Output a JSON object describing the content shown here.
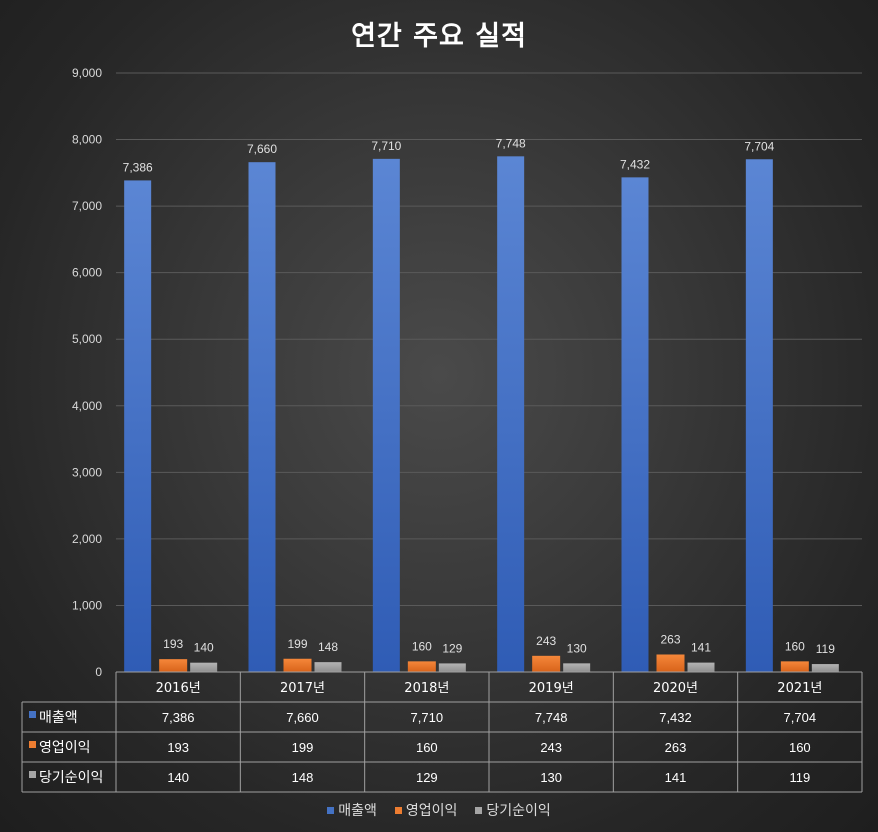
{
  "chart_data": {
    "type": "bar",
    "title": "연간 주요 실적",
    "categories": [
      "2016년",
      "2017년",
      "2018년",
      "2019년",
      "2020년",
      "2021년"
    ],
    "series": [
      {
        "name": "매출액",
        "color": "#4472c4",
        "values": [
          7386,
          7660,
          7710,
          7748,
          7432,
          7704
        ]
      },
      {
        "name": "영업이익",
        "color": "#ed7d31",
        "values": [
          193,
          199,
          160,
          243,
          263,
          160
        ]
      },
      {
        "name": "당기순이익",
        "color": "#a5a5a5",
        "values": [
          140,
          148,
          129,
          130,
          141,
          119
        ]
      }
    ],
    "ylim": [
      0,
      9000
    ],
    "yticks": [
      "0",
      "1,000",
      "2,000",
      "3,000",
      "4,000",
      "5,000",
      "6,000",
      "7,000",
      "8,000",
      "9,000"
    ],
    "value_labels": [
      [
        "7,386",
        "7,660",
        "7,710",
        "7,748",
        "7,432",
        "7,704"
      ],
      [
        "193",
        "199",
        "160",
        "243",
        "263",
        "160"
      ],
      [
        "140",
        "148",
        "129",
        "130",
        "141",
        "119"
      ]
    ],
    "grid": true,
    "legend": "bottom",
    "data_table": true
  }
}
